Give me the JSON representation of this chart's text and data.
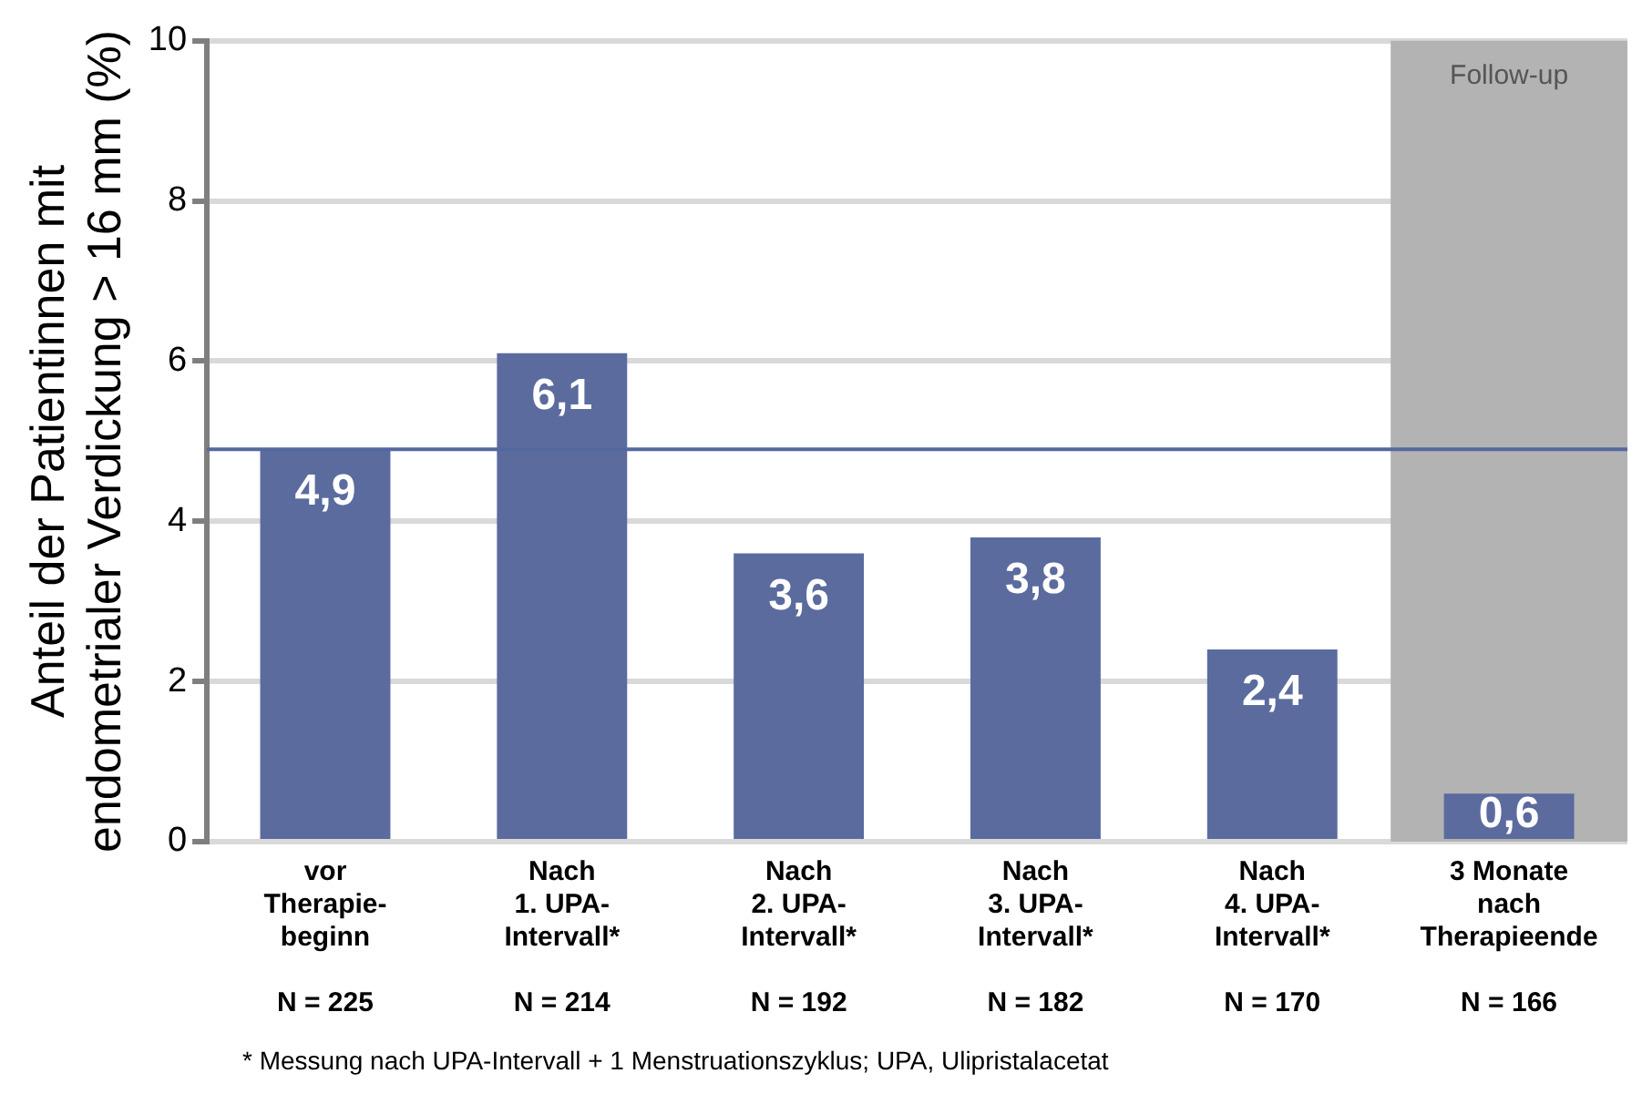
{
  "chart_data": {
    "type": "bar",
    "ylabel": "Anteil der Patientinnen mit\nendometrialer Verdickung > 16 mm (%)",
    "categories": [
      "vor\nTherapie-\nbeginn\n \nN = 225",
      "Nach\n1. UPA-\nIntervall*\n \nN = 214",
      "Nach\n2. UPA-\nIntervall*\n \nN = 192",
      "Nach\n3. UPA-\nIntervall*\n \nN = 182",
      "Nach\n4. UPA-\nIntervall*\n \nN = 170",
      "3 Monate\nnach\nTherapieende\n \nN = 166"
    ],
    "values": [
      4.9,
      6.1,
      3.6,
      3.8,
      2.4,
      0.6
    ],
    "color": "#5b6b9e",
    "value_labels": [
      "4,9",
      "6,1",
      "3,6",
      "3,8",
      "2,4",
      "0,6"
    ],
    "ylim": [
      0,
      10
    ],
    "yticks": [
      0,
      2,
      4,
      6,
      8,
      10
    ],
    "grid": "y",
    "ref_lines": [
      {
        "axis": "y",
        "value": 4.9,
        "color": "#5468a0"
      }
    ],
    "bands": [
      {
        "axis": "x",
        "from": "3 Monate\nnach\nTherapieende\n \nN = 166",
        "to": "3 Monate\nnach\nTherapieende\n \nN = 166",
        "label": "Follow-up",
        "color": "#b3b3b3"
      }
    ],
    "annotations": [
      "* Messung nach UPA-Intervall + 1 Menstruationszyklus; UPA, Ulipristalacetat"
    ]
  }
}
